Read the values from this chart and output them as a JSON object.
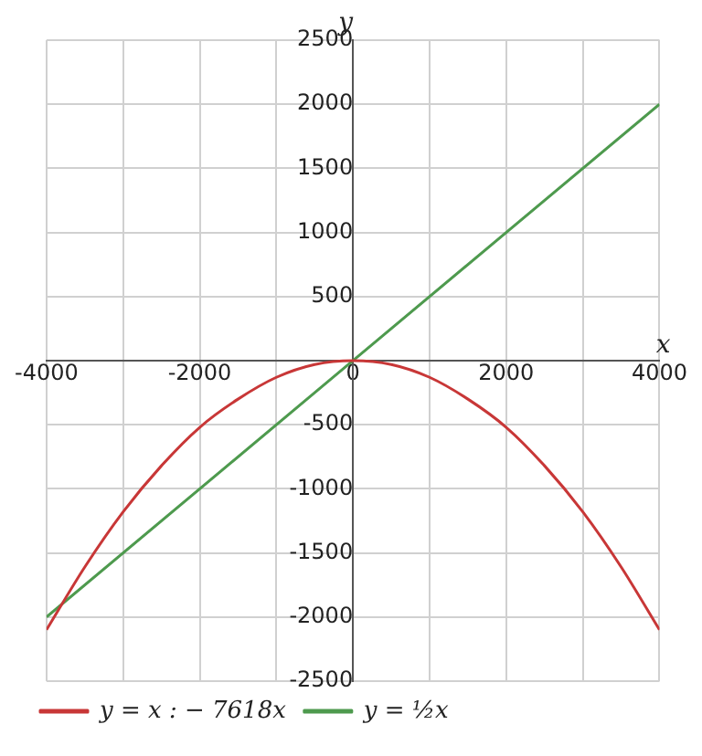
{
  "chart_data": {
    "type": "line",
    "xlabel": "x",
    "ylabel": "y",
    "xlim": [
      -4000,
      4000
    ],
    "ylim": [
      -2500,
      2500
    ],
    "xticks": [
      -4000,
      {
        "value": -3000,
        "label": null
      },
      -2000,
      {
        "value": -1000,
        "label": null
      },
      0,
      {
        "value": 1000,
        "label": null
      },
      2000,
      {
        "value": 3000,
        "label": null
      },
      4000
    ],
    "yticks": [
      -2500,
      -2000,
      -1500,
      -1000,
      -500,
      {
        "value": 0,
        "label": null
      },
      500,
      1000,
      1500,
      2000,
      2500
    ],
    "grid": true,
    "legend": "bottom",
    "marker": "none",
    "line_style": "solid",
    "series": [
      {
        "name": "y = x : − 7618x",
        "color": "#c83737",
        "x": [
          -4000,
          -3500,
          -3000,
          -2500,
          -2000,
          -1500,
          -1000,
          -500,
          0,
          500,
          1000,
          1500,
          2000,
          2500,
          3000,
          3500,
          4000
        ],
        "values": [
          -2100,
          -1610,
          -1180,
          -820,
          -520,
          -300,
          -130,
          -30,
          0,
          -30,
          -130,
          -300,
          -520,
          -820,
          -1180,
          -1610,
          -2100
        ]
      },
      {
        "name": "y = ½x",
        "color": "#4e9a4e",
        "x": [
          -4000,
          4000
        ],
        "values": [
          -2000,
          2000
        ]
      }
    ]
  }
}
